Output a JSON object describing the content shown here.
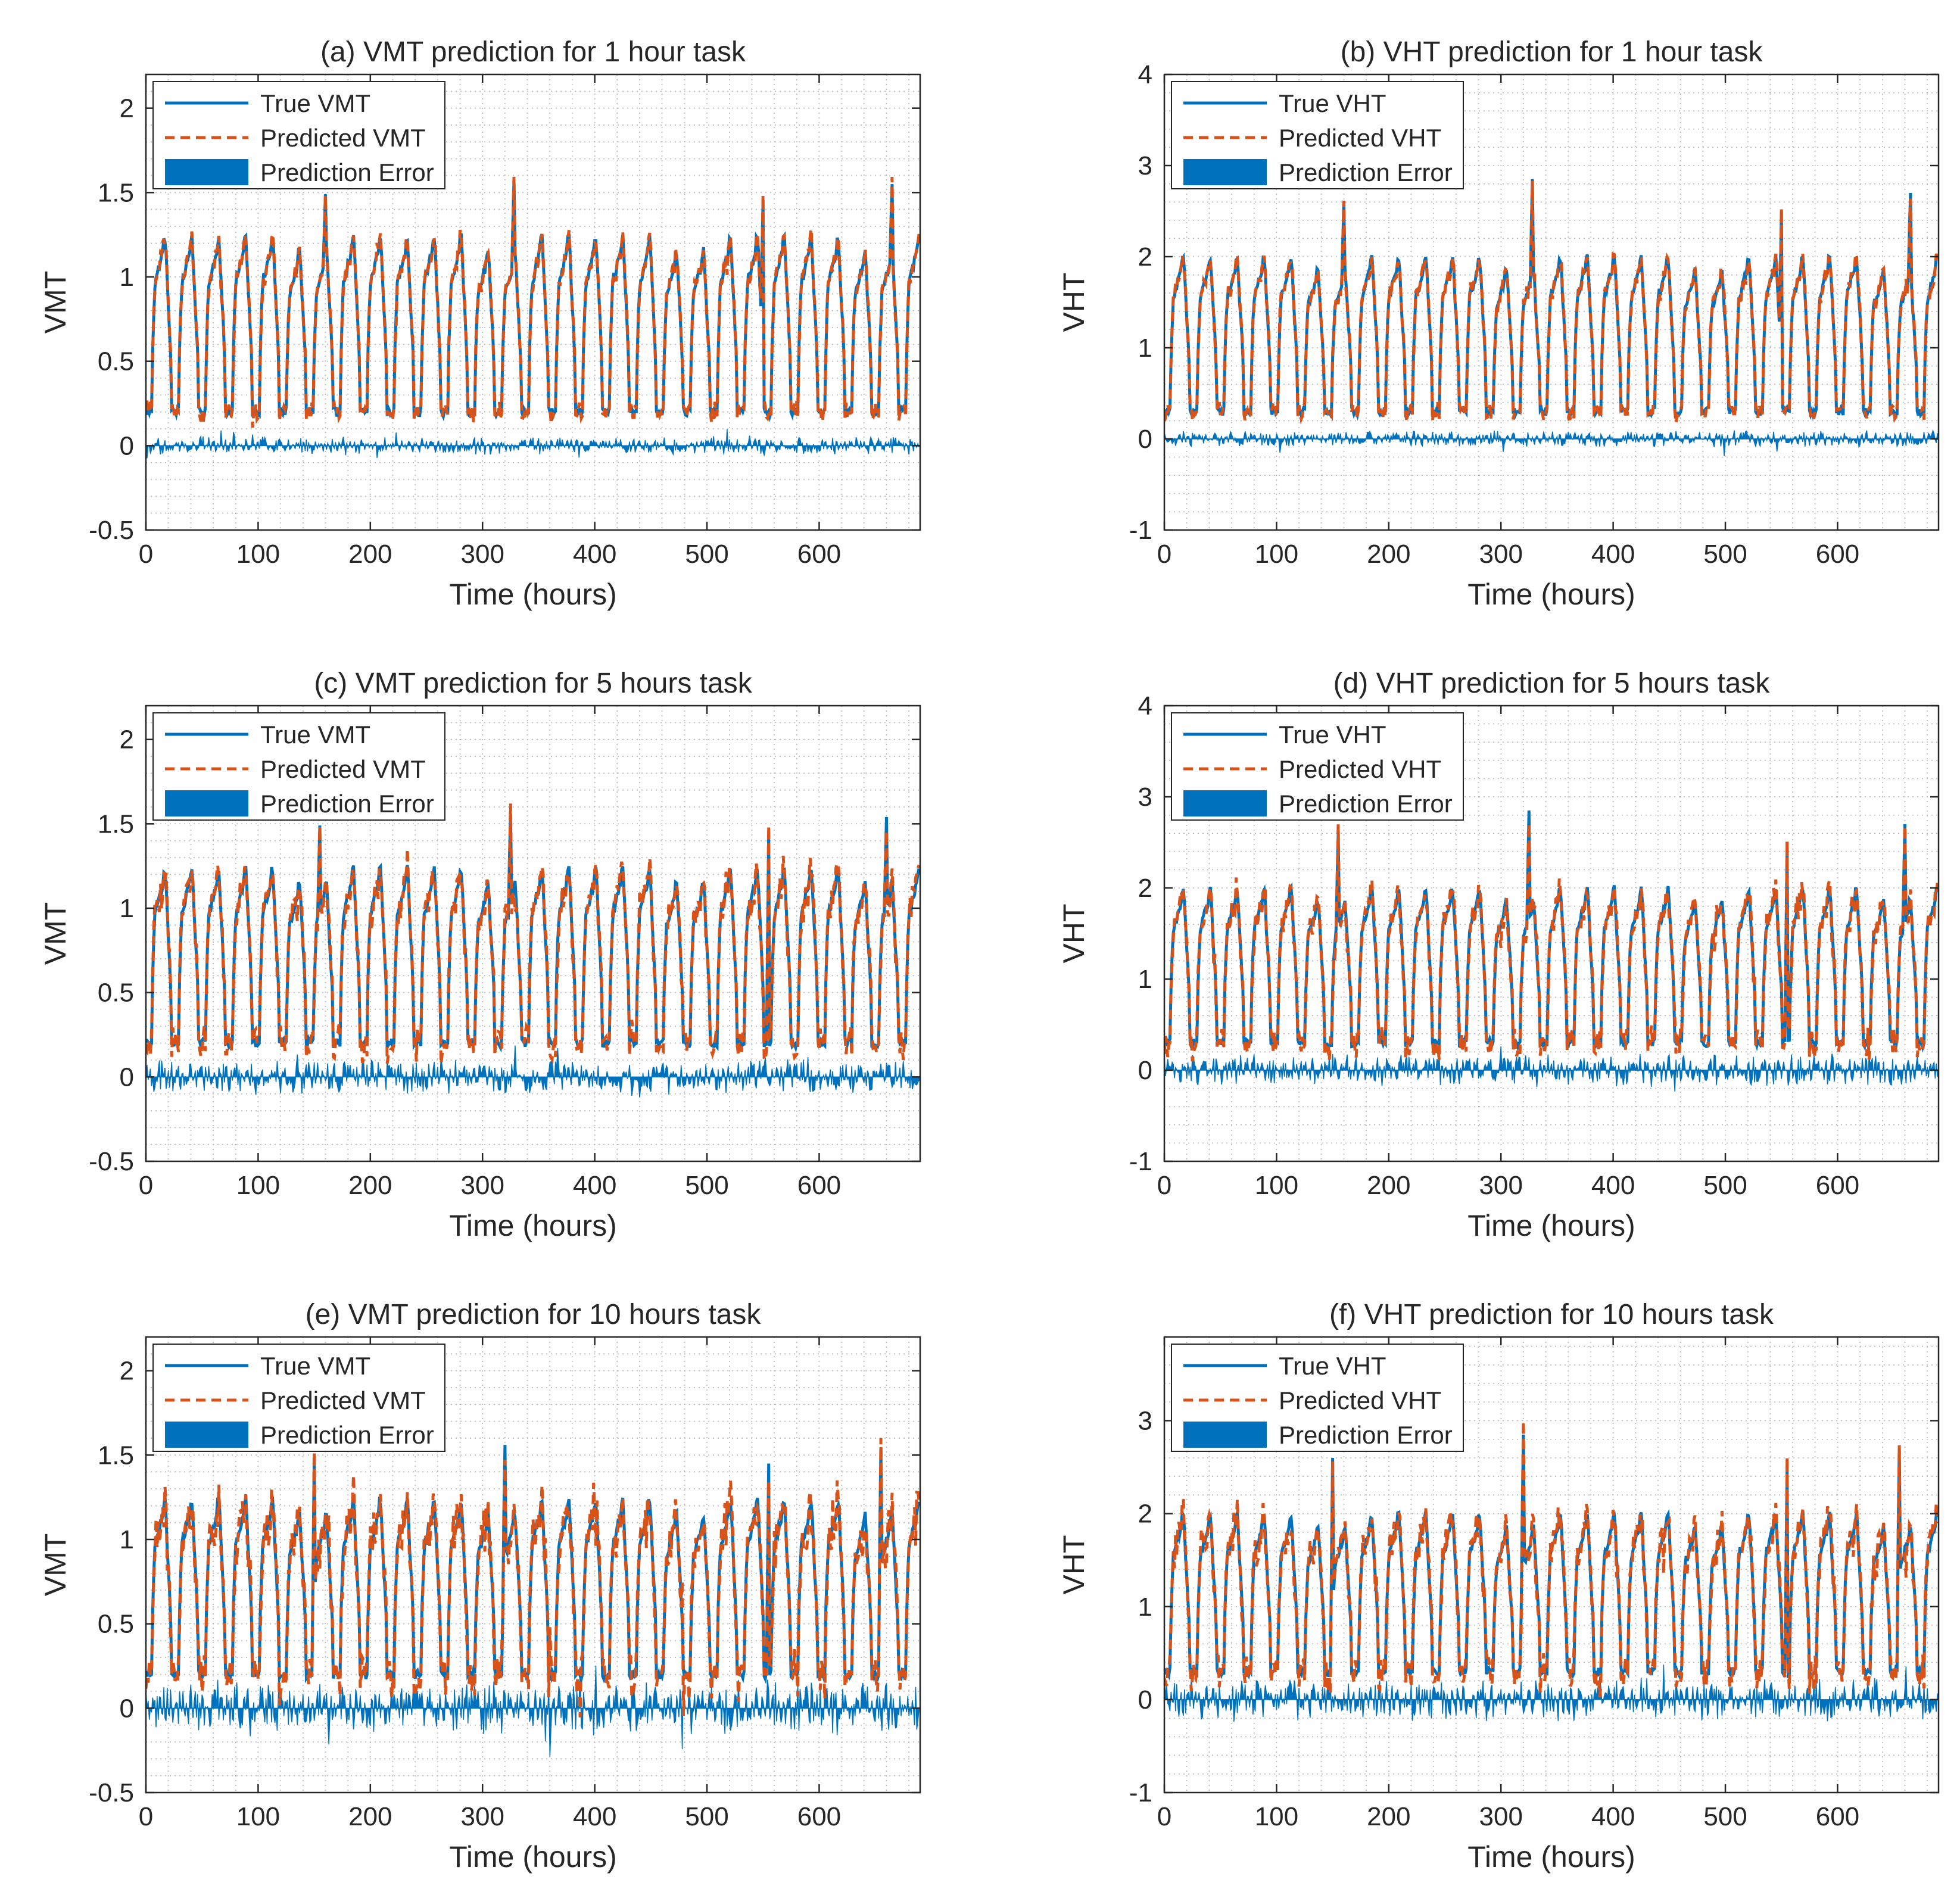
{
  "figure": {
    "background": "#ffffff",
    "colors": {
      "true_series": "#0072BD",
      "predicted_series": "#D95319",
      "error_fill": "#0072BD",
      "grid": "#b4b4b4",
      "axis": "#262626"
    }
  },
  "chart_data": [
    {
      "type": "line",
      "id": "a",
      "title": "(a) VMT prediction for 1 hour task",
      "xlabel": "Time (hours)",
      "ylabel": "VMT",
      "xlim": [
        0,
        690
      ],
      "ylim": [
        -0.5,
        2.2
      ],
      "xticks": [
        0,
        100,
        200,
        300,
        400,
        500,
        600
      ],
      "xtick_labels": [
        "0",
        "100",
        "200",
        "300",
        "400",
        "500",
        "600"
      ],
      "yticks": [
        -0.5,
        0,
        0.5,
        1,
        1.5,
        2
      ],
      "ytick_labels": [
        "-0.5",
        "0",
        "0.5",
        "1",
        "1.5",
        "2"
      ],
      "grid": true,
      "legend_position": "top-left",
      "legend": [
        "True VMT",
        "Predicted VMT",
        "Prediction Error"
      ],
      "series_params": {
        "base": 0.2,
        "amplitude": 1.1,
        "period_hours": 24,
        "points": 690,
        "error_amplitude": 0.06,
        "spike_hours": [
          160,
          328,
          550,
          665
        ],
        "spike_values": [
          1.49,
          1.57,
          1.45,
          1.55
        ]
      }
    },
    {
      "type": "line",
      "id": "b",
      "title": "(b) VHT prediction for 1 hour task",
      "xlabel": "Time (hours)",
      "ylabel": "VHT",
      "xlim": [
        0,
        690
      ],
      "ylim": [
        -1,
        4
      ],
      "xticks": [
        0,
        100,
        200,
        300,
        400,
        500,
        600
      ],
      "xtick_labels": [
        "0",
        "100",
        "200",
        "300",
        "400",
        "500",
        "600"
      ],
      "yticks": [
        -1,
        0,
        1,
        2,
        3,
        4
      ],
      "ytick_labels": [
        "-1",
        "0",
        "1",
        "2",
        "3",
        "4"
      ],
      "grid": true,
      "legend_position": "top-left",
      "legend": [
        "True VHT",
        "Predicted VHT",
        "Prediction Error"
      ],
      "series_params": {
        "base": 0.3,
        "amplitude": 1.8,
        "period_hours": 24,
        "points": 690,
        "error_amplitude": 0.1,
        "spike_hours": [
          160,
          328,
          550,
          665
        ],
        "spike_values": [
          2.6,
          2.85,
          2.5,
          2.7
        ]
      }
    },
    {
      "type": "line",
      "id": "c",
      "title": "(c) VMT prediction for 5 hours task",
      "xlabel": "Time (hours)",
      "ylabel": "VMT",
      "xlim": [
        0,
        690
      ],
      "ylim": [
        -0.5,
        2.2
      ],
      "xticks": [
        0,
        100,
        200,
        300,
        400,
        500,
        600
      ],
      "xtick_labels": [
        "0",
        "100",
        "200",
        "300",
        "400",
        "500",
        "600"
      ],
      "yticks": [
        -0.5,
        0,
        0.5,
        1,
        1.5,
        2
      ],
      "ytick_labels": [
        "-0.5",
        "0",
        "0.5",
        "1",
        "1.5",
        "2"
      ],
      "grid": true,
      "legend_position": "top-left",
      "legend": [
        "True VMT",
        "Predicted VMT",
        "Prediction Error"
      ],
      "series_params": {
        "base": 0.2,
        "amplitude": 1.1,
        "period_hours": 24,
        "points": 690,
        "error_amplitude": 0.12,
        "spike_hours": [
          155,
          325,
          555,
          660
        ],
        "spike_values": [
          1.49,
          1.56,
          1.45,
          1.54
        ]
      }
    },
    {
      "type": "line",
      "id": "d",
      "title": "(d) VHT prediction for 5 hours task",
      "xlabel": "Time (hours)",
      "ylabel": "VHT",
      "xlim": [
        0,
        690
      ],
      "ylim": [
        -1,
        4
      ],
      "xticks": [
        0,
        100,
        200,
        300,
        400,
        500,
        600
      ],
      "xtick_labels": [
        "0",
        "100",
        "200",
        "300",
        "400",
        "500",
        "600"
      ],
      "yticks": [
        -1,
        0,
        1,
        2,
        3,
        4
      ],
      "ytick_labels": [
        "-1",
        "0",
        "1",
        "2",
        "3",
        "4"
      ],
      "grid": true,
      "legend_position": "top-left",
      "legend": [
        "True VHT",
        "Predicted VHT",
        "Prediction Error"
      ],
      "series_params": {
        "base": 0.3,
        "amplitude": 1.8,
        "period_hours": 24,
        "points": 690,
        "error_amplitude": 0.2,
        "spike_hours": [
          155,
          325,
          555,
          660
        ],
        "spike_values": [
          2.6,
          2.85,
          2.5,
          2.7
        ]
      }
    },
    {
      "type": "line",
      "id": "e",
      "title": "(e) VMT prediction for 10 hours task",
      "xlabel": "Time (hours)",
      "ylabel": "VMT",
      "xlim": [
        0,
        690
      ],
      "ylim": [
        -0.5,
        2.2
      ],
      "xticks": [
        0,
        100,
        200,
        300,
        400,
        500,
        600
      ],
      "xtick_labels": [
        "0",
        "100",
        "200",
        "300",
        "400",
        "500",
        "600"
      ],
      "yticks": [
        -0.5,
        0,
        0.5,
        1,
        1.5,
        2
      ],
      "ytick_labels": [
        "-0.5",
        "0",
        "0.5",
        "1",
        "1.5",
        "2"
      ],
      "grid": true,
      "legend_position": "top-left",
      "legend": [
        "True VMT",
        "Predicted VMT",
        "Prediction Error"
      ],
      "series_params": {
        "base": 0.2,
        "amplitude": 1.1,
        "period_hours": 24,
        "points": 690,
        "error_amplitude": 0.18,
        "spike_hours": [
          150,
          320,
          555,
          655
        ],
        "spike_values": [
          1.49,
          1.56,
          1.45,
          1.54
        ]
      }
    },
    {
      "type": "line",
      "id": "f",
      "title": "(f) VHT prediction for 10 hours task",
      "xlabel": "Time (hours)",
      "ylabel": "VHT",
      "xlim": [
        0,
        690
      ],
      "ylim": [
        -1,
        3.9
      ],
      "xticks": [
        0,
        100,
        200,
        300,
        400,
        500,
        600
      ],
      "xtick_labels": [
        "0",
        "100",
        "200",
        "300",
        "400",
        "500",
        "600"
      ],
      "yticks": [
        -1,
        0,
        1,
        2,
        3
      ],
      "ytick_labels": [
        "-1",
        "0",
        "1",
        "2",
        "3"
      ],
      "grid": true,
      "legend_position": "top-left",
      "legend": [
        "True VHT",
        "Predicted VHT",
        "Prediction Error"
      ],
      "series_params": {
        "base": 0.3,
        "amplitude": 1.8,
        "period_hours": 24,
        "points": 690,
        "error_amplitude": 0.25,
        "spike_hours": [
          150,
          320,
          555,
          655
        ],
        "spike_values": [
          2.6,
          2.85,
          2.5,
          2.7
        ]
      }
    }
  ]
}
